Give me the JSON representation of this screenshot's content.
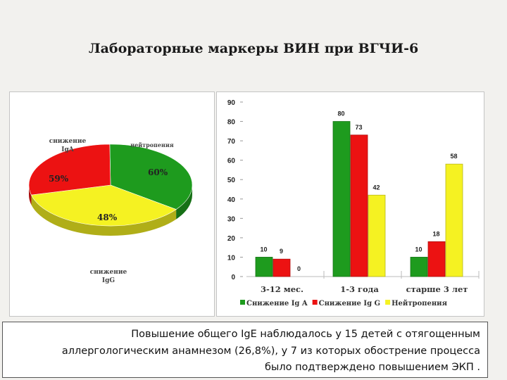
{
  "title": "Лабораторные маркеры ВИН при ВГЧИ-6",
  "chart_data": [
    {
      "type": "pie",
      "labels": [
        "снижение IgA",
        "нейтропения",
        "снижение IgG"
      ],
      "values": [
        59,
        60,
        48
      ],
      "value_labels": [
        "59%",
        "60%",
        "48%"
      ],
      "colors": [
        "#1e9b1e",
        "#f5f222",
        "#ec1212"
      ],
      "style": "3d"
    },
    {
      "type": "bar",
      "categories": [
        "3-12 мес.",
        "1-3 года",
        "старше 3 лет"
      ],
      "series": [
        {
          "name": "Снижение Ig A",
          "values": [
            10,
            80,
            10
          ],
          "color": "#1e9b1e"
        },
        {
          "name": "Снижение Ig G",
          "values": [
            9,
            73,
            18
          ],
          "color": "#ec1212"
        },
        {
          "name": "Нейтропения",
          "values": [
            0,
            42,
            58
          ],
          "color": "#f5f222"
        }
      ],
      "ylim": [
        0,
        90
      ],
      "yticks": [
        "0",
        "10",
        "20",
        "30",
        "40",
        "50",
        "60",
        "70",
        "80",
        "90"
      ],
      "legend": "bottom",
      "grid": false
    }
  ],
  "note": {
    "lines": [
      "Повышение общего IgE наблюдалось у 15 детей с отягощенным",
      "аллергологическим анамнезом (26,8%),  у 7 из которых обострение процесса",
      "было подтверждено  повышением ЭКП ."
    ]
  }
}
